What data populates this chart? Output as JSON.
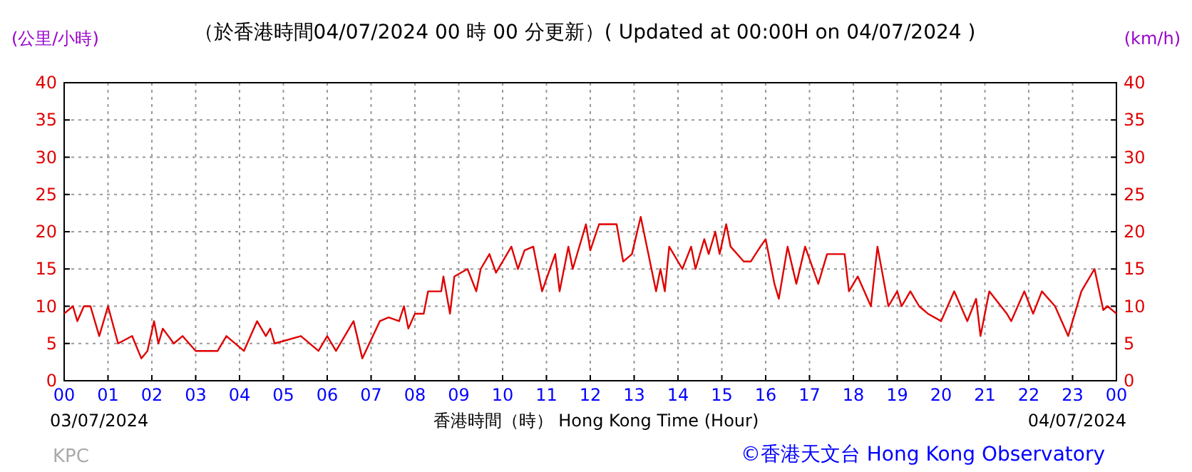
{
  "chart_data": {
    "type": "line",
    "title": "（於香港時間04/07/2024 00 時 00 分更新）( Updated at 00:00H on 04/07/2024 )",
    "xlabel": "香港時間（時） Hong Kong Time (Hour)",
    "ylabel": "(公里/小時)",
    "y2label": "(km/h)",
    "annotations": [
      "03/07/2024",
      "04/07/2024",
      "KPC",
      "©香港天文台 Hong Kong Observatory"
    ],
    "xlim": [
      0,
      24
    ],
    "xticks": [
      {
        "value": 0,
        "label": "00"
      },
      {
        "value": 1,
        "label": "01"
      },
      {
        "value": 2,
        "label": "02"
      },
      {
        "value": 3,
        "label": "03"
      },
      {
        "value": 4,
        "label": "04"
      },
      {
        "value": 5,
        "label": "05"
      },
      {
        "value": 6,
        "label": "06"
      },
      {
        "value": 7,
        "label": "07"
      },
      {
        "value": 8,
        "label": "08"
      },
      {
        "value": 9,
        "label": "09"
      },
      {
        "value": 10,
        "label": "10"
      },
      {
        "value": 11,
        "label": "11"
      },
      {
        "value": 12,
        "label": "12"
      },
      {
        "value": 13,
        "label": "13"
      },
      {
        "value": 14,
        "label": "14"
      },
      {
        "value": 15,
        "label": "15"
      },
      {
        "value": 16,
        "label": "16"
      },
      {
        "value": 17,
        "label": "17"
      },
      {
        "value": 18,
        "label": "18"
      },
      {
        "value": 19,
        "label": "19"
      },
      {
        "value": 20,
        "label": "20"
      },
      {
        "value": 21,
        "label": "21"
      },
      {
        "value": 22,
        "label": "22"
      },
      {
        "value": 23,
        "label": "23"
      },
      {
        "value": 24,
        "label": "00"
      }
    ],
    "ylim": [
      0,
      40
    ],
    "yticks": [
      0,
      5,
      10,
      15,
      20,
      25,
      30,
      35,
      40
    ],
    "y2lim": [
      0,
      40
    ],
    "y2ticks": [
      0,
      5,
      10,
      15,
      20,
      25,
      30,
      35,
      40
    ],
    "grid": true,
    "marker": "none",
    "line_style": "solid",
    "series": [
      {
        "color": "#e00000",
        "x": [
          0,
          0.2,
          0.3,
          0.45,
          0.6,
          0.8,
          1.0,
          1.23,
          1.55,
          1.76,
          1.9,
          2.05,
          2.15,
          2.25,
          2.5,
          2.7,
          3.0,
          3.5,
          3.7,
          4.1,
          4.4,
          4.6,
          4.7,
          4.8,
          5.4,
          5.8,
          6.0,
          6.2,
          6.6,
          6.8,
          7.2,
          7.4,
          7.64,
          7.75,
          7.85,
          8.0,
          8.2,
          8.3,
          8.6,
          8.65,
          8.8,
          8.9,
          9.2,
          9.4,
          9.5,
          9.7,
          9.85,
          10.0,
          10.2,
          10.35,
          10.5,
          10.7,
          10.9,
          11.2,
          11.3,
          11.5,
          11.6,
          11.9,
          12.0,
          12.2,
          12.6,
          12.75,
          12.95,
          13.15,
          13.5,
          13.6,
          13.7,
          13.8,
          14.1,
          14.3,
          14.4,
          14.6,
          14.7,
          14.85,
          14.95,
          15.1,
          15.2,
          15.5,
          15.66,
          15.88,
          16.0,
          16.2,
          16.3,
          16.5,
          16.7,
          16.9,
          17.2,
          17.4,
          17.8,
          17.9,
          18.1,
          18.4,
          18.55,
          18.8,
          19.0,
          19.1,
          19.3,
          19.5,
          19.7,
          20.0,
          20.3,
          20.6,
          20.8,
          20.9,
          21.1,
          21.5,
          21.6,
          21.9,
          22.1,
          22.3,
          22.6,
          22.9,
          23.2,
          23.5,
          23.7,
          23.8,
          24.0
        ],
        "values": [
          9,
          10,
          8,
          10,
          10,
          6,
          10,
          5,
          6,
          3,
          4,
          8,
          5,
          7,
          5,
          6,
          4,
          4,
          6,
          4,
          8,
          6,
          7,
          5,
          6,
          4,
          6,
          4,
          8,
          3,
          8,
          8.5,
          8,
          10,
          7,
          9,
          9,
          12,
          12,
          14,
          9,
          14,
          15,
          12,
          15,
          17,
          14.5,
          16,
          18,
          15,
          17.5,
          18,
          12,
          17,
          12,
          18,
          15,
          21,
          17.5,
          21,
          21,
          16,
          17,
          22,
          12,
          15,
          12,
          18,
          15,
          18,
          15,
          19,
          17,
          20,
          17,
          21,
          18,
          16,
          16,
          18,
          19,
          13,
          11,
          18,
          13,
          18,
          13,
          17,
          17,
          12,
          14,
          10,
          18,
          10,
          12,
          10,
          12,
          10,
          9,
          8,
          12,
          8,
          11,
          6,
          12,
          9,
          8,
          12,
          9,
          12,
          10,
          6,
          12,
          15,
          9.5,
          10,
          9
        ]
      }
    ]
  }
}
